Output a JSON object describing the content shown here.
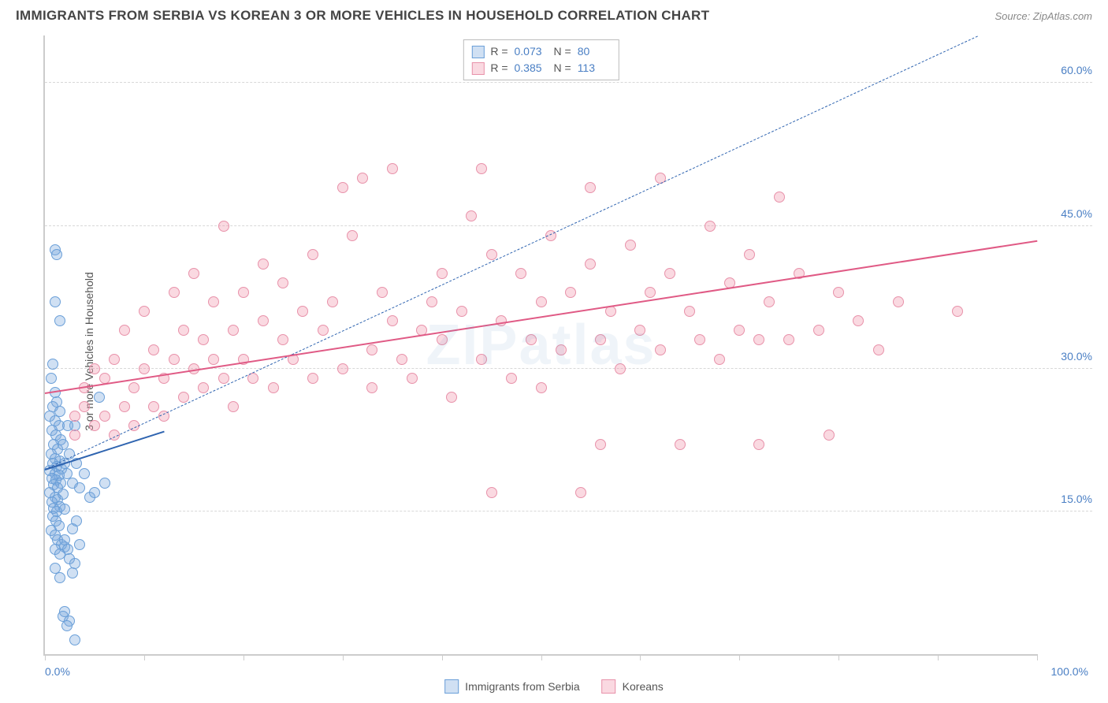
{
  "title": "IMMIGRANTS FROM SERBIA VS KOREAN 3 OR MORE VEHICLES IN HOUSEHOLD CORRELATION CHART",
  "source": "Source: ZipAtlas.com",
  "watermark": "ZIPatlas",
  "ylabel": "3 or more Vehicles in Household",
  "chart": {
    "type": "scatter",
    "xlim": [
      0,
      100
    ],
    "ylim": [
      0,
      65
    ],
    "y_gridlines": [
      15,
      30,
      45,
      60
    ],
    "y_tick_labels": [
      "15.0%",
      "30.0%",
      "45.0%",
      "60.0%"
    ],
    "x_ticks": [
      0,
      10,
      20,
      30,
      40,
      50,
      60,
      70,
      80,
      90,
      100
    ],
    "x_tick_labels": {
      "first": "0.0%",
      "last": "100.0%"
    },
    "grid_color": "#d8d8d8",
    "axis_color": "#cccccc",
    "background_color": "#ffffff",
    "label_color": "#4a7fc4",
    "point_radius": 7
  },
  "series": [
    {
      "name": "Immigrants from Serbia",
      "fill": "rgba(120,165,220,0.35)",
      "stroke": "#6a9fd8",
      "trend_color": "#2f64b0",
      "trend_style": "solid",
      "trend": {
        "x1": 0,
        "y1": 19.5,
        "x2": 12,
        "y2": 23.5
      },
      "dashed_trend": {
        "x1": 0,
        "y1": 19.5,
        "x2": 94,
        "y2": 65
      },
      "R": "0.073",
      "N": "80",
      "points": [
        [
          1.0,
          42.5
        ],
        [
          1.2,
          42.0
        ],
        [
          1.0,
          37.0
        ],
        [
          1.5,
          35.0
        ],
        [
          0.8,
          30.5
        ],
        [
          0.6,
          29.0
        ],
        [
          1.0,
          27.5
        ],
        [
          1.2,
          26.5
        ],
        [
          0.8,
          26.0
        ],
        [
          1.5,
          25.5
        ],
        [
          0.5,
          25.0
        ],
        [
          1.0,
          24.5
        ],
        [
          1.4,
          24.0
        ],
        [
          0.7,
          23.5
        ],
        [
          1.1,
          23.0
        ],
        [
          1.6,
          22.5
        ],
        [
          0.9,
          22.0
        ],
        [
          1.3,
          21.5
        ],
        [
          0.6,
          21.0
        ],
        [
          1.0,
          20.5
        ],
        [
          1.5,
          20.3
        ],
        [
          0.8,
          20.0
        ],
        [
          1.2,
          19.7
        ],
        [
          1.7,
          19.5
        ],
        [
          0.5,
          19.3
        ],
        [
          1.0,
          19.0
        ],
        [
          1.4,
          18.8
        ],
        [
          0.7,
          18.5
        ],
        [
          1.1,
          18.3
        ],
        [
          1.6,
          18.0
        ],
        [
          0.9,
          17.8
        ],
        [
          1.3,
          17.5
        ],
        [
          2.0,
          20.0
        ],
        [
          2.5,
          21.0
        ],
        [
          2.2,
          19.0
        ],
        [
          2.8,
          18.0
        ],
        [
          3.0,
          24.0
        ],
        [
          3.2,
          20.0
        ],
        [
          3.5,
          17.5
        ],
        [
          4.0,
          19.0
        ],
        [
          4.5,
          16.5
        ],
        [
          5.0,
          17.0
        ],
        [
          5.5,
          27.0
        ],
        [
          6.0,
          18.0
        ],
        [
          1.0,
          16.5
        ],
        [
          1.3,
          16.2
        ],
        [
          0.7,
          16.0
        ],
        [
          1.5,
          15.5
        ],
        [
          0.9,
          15.3
        ],
        [
          1.2,
          15.0
        ],
        [
          1.8,
          16.8
        ],
        [
          2.0,
          15.2
        ],
        [
          0.8,
          14.5
        ],
        [
          1.1,
          14.0
        ],
        [
          1.4,
          13.5
        ],
        [
          0.6,
          13.0
        ],
        [
          1.0,
          12.5
        ],
        [
          1.3,
          12.0
        ],
        [
          1.7,
          11.5
        ],
        [
          2.0,
          11.3
        ],
        [
          2.3,
          11.0
        ],
        [
          2.5,
          10.0
        ],
        [
          2.8,
          13.2
        ],
        [
          3.5,
          11.5
        ],
        [
          3.0,
          9.5
        ],
        [
          1.0,
          9.0
        ],
        [
          1.5,
          8.0
        ],
        [
          2.0,
          4.5
        ],
        [
          1.8,
          4.0
        ],
        [
          2.5,
          3.5
        ],
        [
          2.2,
          3.0
        ],
        [
          3.0,
          1.5
        ],
        [
          2.0,
          12.0
        ],
        [
          0.5,
          17.0
        ],
        [
          1.8,
          22.0
        ],
        [
          2.3,
          24.0
        ],
        [
          1.0,
          11.0
        ],
        [
          1.5,
          10.5
        ],
        [
          2.8,
          8.5
        ],
        [
          3.2,
          14.0
        ]
      ]
    },
    {
      "name": "Koreans",
      "fill": "rgba(240,145,170,0.35)",
      "stroke": "#e892aa",
      "trend_color": "#e05a85",
      "trend_style": "solid",
      "trend": {
        "x1": 0,
        "y1": 27.5,
        "x2": 100,
        "y2": 43.5
      },
      "R": "0.385",
      "N": "113",
      "points": [
        [
          3,
          25
        ],
        [
          3,
          23
        ],
        [
          4,
          26
        ],
        [
          4,
          28
        ],
        [
          5,
          24
        ],
        [
          5,
          30
        ],
        [
          6,
          25
        ],
        [
          6,
          29
        ],
        [
          7,
          23
        ],
        [
          7,
          31
        ],
        [
          8,
          26
        ],
        [
          8,
          34
        ],
        [
          9,
          28
        ],
        [
          9,
          24
        ],
        [
          10,
          30
        ],
        [
          10,
          36
        ],
        [
          11,
          26
        ],
        [
          11,
          32
        ],
        [
          12,
          29
        ],
        [
          12,
          25
        ],
        [
          13,
          31
        ],
        [
          13,
          38
        ],
        [
          14,
          27
        ],
        [
          14,
          34
        ],
        [
          15,
          30
        ],
        [
          15,
          40
        ],
        [
          16,
          28
        ],
        [
          16,
          33
        ],
        [
          17,
          31
        ],
        [
          17,
          37
        ],
        [
          18,
          45
        ],
        [
          18,
          29
        ],
        [
          19,
          34
        ],
        [
          19,
          26
        ],
        [
          20,
          38
        ],
        [
          20,
          31
        ],
        [
          21,
          29
        ],
        [
          22,
          35
        ],
        [
          22,
          41
        ],
        [
          23,
          28
        ],
        [
          24,
          33
        ],
        [
          24,
          39
        ],
        [
          25,
          31
        ],
        [
          26,
          36
        ],
        [
          27,
          29
        ],
        [
          27,
          42
        ],
        [
          28,
          34
        ],
        [
          29,
          37
        ],
        [
          30,
          49
        ],
        [
          30,
          30
        ],
        [
          31,
          44
        ],
        [
          32,
          50
        ],
        [
          33,
          28
        ],
        [
          33,
          32
        ],
        [
          34,
          38
        ],
        [
          35,
          35
        ],
        [
          35,
          51
        ],
        [
          36,
          31
        ],
        [
          37,
          29
        ],
        [
          38,
          34
        ],
        [
          39,
          37
        ],
        [
          40,
          33
        ],
        [
          40,
          40
        ],
        [
          41,
          27
        ],
        [
          42,
          36
        ],
        [
          43,
          46
        ],
        [
          44,
          31
        ],
        [
          44,
          51
        ],
        [
          45,
          42
        ],
        [
          45,
          17
        ],
        [
          46,
          35
        ],
        [
          47,
          29
        ],
        [
          48,
          40
        ],
        [
          49,
          33
        ],
        [
          50,
          28
        ],
        [
          50,
          37
        ],
        [
          51,
          44
        ],
        [
          52,
          32
        ],
        [
          53,
          38
        ],
        [
          54,
          17
        ],
        [
          55,
          41
        ],
        [
          55,
          49
        ],
        [
          56,
          33
        ],
        [
          56,
          22
        ],
        [
          57,
          36
        ],
        [
          58,
          30
        ],
        [
          59,
          43
        ],
        [
          60,
          34
        ],
        [
          61,
          38
        ],
        [
          62,
          32
        ],
        [
          62,
          50
        ],
        [
          63,
          40
        ],
        [
          64,
          22
        ],
        [
          65,
          36
        ],
        [
          66,
          33
        ],
        [
          67,
          45
        ],
        [
          68,
          31
        ],
        [
          69,
          39
        ],
        [
          70,
          34
        ],
        [
          71,
          42
        ],
        [
          72,
          33
        ],
        [
          72,
          22
        ],
        [
          73,
          37
        ],
        [
          74,
          48
        ],
        [
          75,
          33
        ],
        [
          76,
          40
        ],
        [
          78,
          34
        ],
        [
          79,
          23
        ],
        [
          80,
          38
        ],
        [
          82,
          35
        ],
        [
          84,
          32
        ],
        [
          86,
          37
        ],
        [
          92,
          36
        ]
      ]
    }
  ],
  "stats_labels": {
    "R": "R =",
    "N": "N ="
  },
  "legend": {
    "series1_label": "Immigrants from Serbia",
    "series2_label": "Koreans"
  }
}
